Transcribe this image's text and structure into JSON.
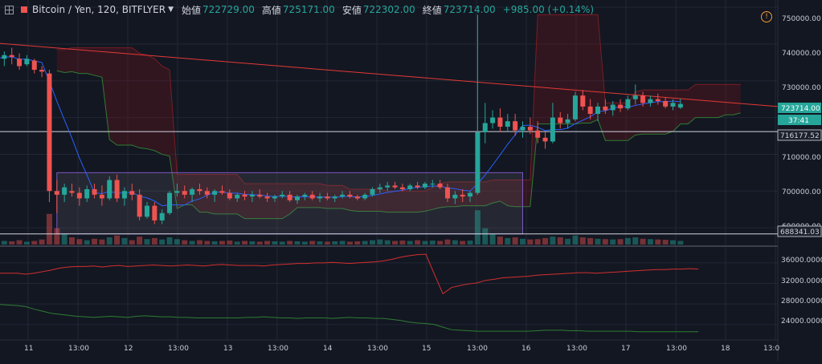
{
  "header": {
    "symbol": "Bitcoin / Yen, 120, BITFLYER",
    "open_label": "始値",
    "open_value": "722729.00",
    "high_label": "高値",
    "high_value": "725171.00",
    "low_label": "安値",
    "low_value": "722302.00",
    "close_label": "終値",
    "close_value": "723714.00",
    "change": "+985.00 (+0.14%)",
    "warning_symbol": "!"
  },
  "colors": {
    "up": "#26a69a",
    "down": "#ef5350",
    "background": "#131722",
    "grid": "#222734"
  },
  "icons": {
    "expand": "expand-icon",
    "dropdown": "chevron-down-icon",
    "warning": "warning-icon"
  },
  "price_scale": {
    "ticks": [
      "750000.00",
      "740000.00",
      "730000.00",
      "720000.00",
      "710000.00",
      "700000.00",
      "690000.00"
    ],
    "last_price_label": "723714.00",
    "countdown_label": "37:41",
    "upper_line_label": "716177.52",
    "lower_line_label": "688341.03"
  },
  "volume_scale": {
    "ticks": [
      "36000.0000",
      "32000.0000",
      "28000.0000",
      "24000.0000"
    ]
  },
  "time_axis": {
    "labels": [
      "11",
      "13:00",
      "12",
      "13:00",
      "13",
      "13:00",
      "14",
      "13:00",
      "15",
      "13:00",
      "16",
      "13:00",
      "17",
      "13:00",
      "18",
      "13:0"
    ]
  },
  "chart_data": {
    "type": "candlestick",
    "symbol": "Bitcoin / Yen",
    "interval": "120",
    "exchange": "BITFLYER",
    "y_range": [
      685000,
      752000
    ],
    "candles": [
      [
        737000,
        738500,
        735000,
        736000
      ],
      [
        736000,
        738000,
        734000,
        737000
      ],
      [
        737000,
        739000,
        734500,
        736500
      ],
      [
        736000,
        737500,
        733000,
        734000
      ],
      [
        734500,
        737000,
        734000,
        736000
      ],
      [
        735500,
        736000,
        732000,
        733000
      ],
      [
        733000,
        734000,
        731000,
        732500
      ],
      [
        732000,
        733000,
        697000,
        700000
      ],
      [
        700000,
        703000,
        694000,
        699000
      ],
      [
        699000,
        702000,
        697000,
        701000
      ],
      [
        700000,
        702000,
        698500,
        699500
      ],
      [
        699500,
        701000,
        696000,
        698000
      ],
      [
        698000,
        701500,
        697000,
        700500
      ],
      [
        700500,
        702000,
        698000,
        699000
      ],
      [
        699000,
        701500,
        696000,
        698000
      ],
      [
        698000,
        704000,
        697500,
        703000
      ],
      [
        703000,
        704500,
        697000,
        698000
      ],
      [
        698000,
        701000,
        696000,
        700000
      ],
      [
        700000,
        702000,
        697500,
        699000
      ],
      [
        699000,
        700500,
        692000,
        693000
      ],
      [
        693000,
        697000,
        692500,
        696000
      ],
      [
        696000,
        697000,
        691000,
        692000
      ],
      [
        692000,
        695000,
        691000,
        694000
      ],
      [
        694000,
        700000,
        693500,
        699500
      ],
      [
        699500,
        702000,
        698500,
        700000
      ],
      [
        700000,
        701500,
        698000,
        699000
      ],
      [
        699000,
        701000,
        697000,
        700500
      ],
      [
        700500,
        702000,
        699000,
        700000
      ],
      [
        700000,
        701000,
        698000,
        699000
      ],
      [
        699000,
        700500,
        697000,
        700000
      ],
      [
        700000,
        701500,
        699000,
        699500
      ],
      [
        699500,
        700500,
        697500,
        698000
      ],
      [
        698000,
        699500,
        697000,
        699000
      ],
      [
        699000,
        700000,
        697500,
        698500
      ],
      [
        698500,
        700000,
        697000,
        699000
      ],
      [
        699000,
        700500,
        698000,
        698500
      ],
      [
        698500,
        699500,
        697000,
        698000
      ],
      [
        698000,
        699000,
        697000,
        698500
      ],
      [
        698500,
        700000,
        698000,
        699000
      ],
      [
        699000,
        700000,
        697000,
        697500
      ],
      [
        697500,
        699000,
        696500,
        698500
      ],
      [
        698500,
        699500,
        697500,
        699000
      ],
      [
        699000,
        700000,
        697500,
        698000
      ],
      [
        698000,
        699500,
        697000,
        698500
      ],
      [
        698500,
        699500,
        697500,
        698000
      ],
      [
        698000,
        699000,
        697000,
        698500
      ],
      [
        698500,
        700000,
        698000,
        699000
      ],
      [
        699000,
        700000,
        698000,
        698500
      ],
      [
        698500,
        699000,
        697500,
        698000
      ],
      [
        698000,
        699500,
        697500,
        699000
      ],
      [
        699000,
        701000,
        698500,
        700500
      ],
      [
        700500,
        702000,
        699500,
        701000
      ],
      [
        701000,
        702500,
        700000,
        701500
      ],
      [
        701500,
        702500,
        700500,
        701000
      ],
      [
        701000,
        702000,
        700000,
        700500
      ],
      [
        700500,
        702000,
        700000,
        701500
      ],
      [
        701500,
        702500,
        700500,
        701000
      ],
      [
        701000,
        702500,
        700500,
        702000
      ],
      [
        702000,
        703000,
        701000,
        702000
      ],
      [
        702000,
        703000,
        700500,
        701000
      ],
      [
        701000,
        702000,
        697000,
        698000
      ],
      [
        698000,
        700000,
        696500,
        699000
      ],
      [
        699000,
        700500,
        697000,
        698500
      ],
      [
        698500,
        700000,
        697000,
        699500
      ],
      [
        699500,
        748000,
        699000,
        716000
      ],
      [
        716000,
        724000,
        713000,
        718500
      ],
      [
        718500,
        722000,
        717000,
        720000
      ],
      [
        720000,
        722500,
        716000,
        717500
      ],
      [
        717500,
        721000,
        716000,
        719000
      ],
      [
        719000,
        721000,
        715000,
        716500
      ],
      [
        716500,
        719000,
        714500,
        717500
      ],
      [
        717500,
        720000,
        715500,
        716500
      ],
      [
        716500,
        719000,
        713000,
        714500
      ],
      [
        714500,
        716000,
        711500,
        713500
      ],
      [
        713500,
        724000,
        713000,
        720000
      ],
      [
        720000,
        721500,
        717000,
        718500
      ],
      [
        718500,
        721000,
        717000,
        719500
      ],
      [
        719500,
        727000,
        719000,
        726000
      ],
      [
        726000,
        727500,
        722000,
        723000
      ],
      [
        723000,
        725000,
        719500,
        721000
      ],
      [
        721000,
        724000,
        719000,
        723000
      ],
      [
        723000,
        725000,
        721000,
        722000
      ],
      [
        722000,
        724500,
        720500,
        723500
      ],
      [
        723500,
        725000,
        721500,
        722500
      ],
      [
        722500,
        726000,
        722000,
        725000
      ],
      [
        725000,
        729000,
        723500,
        726000
      ],
      [
        726000,
        727000,
        723000,
        724000
      ],
      [
        724000,
        726000,
        723000,
        725000
      ],
      [
        725000,
        726500,
        723500,
        724500
      ],
      [
        724500,
        725500,
        722500,
        723000
      ],
      [
        723000,
        725000,
        722000,
        724000
      ],
      [
        722729,
        725171,
        722302,
        723714
      ]
    ],
    "volume_levels": [
      0.08,
      0.1,
      0.09,
      0.12,
      0.08,
      0.1,
      0.14,
      0.85,
      0.45,
      0.3,
      0.2,
      0.15,
      0.12,
      0.16,
      0.14,
      0.2,
      0.25,
      0.18,
      0.12,
      0.22,
      0.15,
      0.18,
      0.14,
      0.2,
      0.15,
      0.12,
      0.1,
      0.12,
      0.1,
      0.09,
      0.1,
      0.11,
      0.08,
      0.1,
      0.09,
      0.08,
      0.1,
      0.09,
      0.08,
      0.1,
      0.09,
      0.08,
      0.1,
      0.09,
      0.08,
      0.09,
      0.1,
      0.08,
      0.09,
      0.1,
      0.12,
      0.14,
      0.12,
      0.1,
      0.11,
      0.1,
      0.12,
      0.1,
      0.11,
      0.1,
      0.14,
      0.12,
      0.1,
      0.11,
      0.95,
      0.45,
      0.3,
      0.22,
      0.18,
      0.2,
      0.16,
      0.14,
      0.15,
      0.18,
      0.22,
      0.2,
      0.16,
      0.25,
      0.2,
      0.18,
      0.16,
      0.15,
      0.14,
      0.15,
      0.18,
      0.2,
      0.16,
      0.15,
      0.14,
      0.13,
      0.12,
      0.1
    ],
    "horizontal_lines": [
      716177.52,
      688341.03
    ],
    "range_box": {
      "from_index": 8,
      "to_index": 70,
      "top": 705000,
      "bottom": 688341.03
    },
    "indicator_y_range": [
      21000,
      38800
    ],
    "indicator_series": [
      {
        "color": "#d32f2f",
        "values": [
          34000,
          34000,
          34000,
          33800,
          34000,
          34300,
          34600,
          35000,
          35200,
          35300,
          35300,
          35400,
          35200,
          35400,
          35500,
          35300,
          35400,
          35500,
          35600,
          35500,
          35400,
          35500,
          35600,
          35500,
          35400,
          35600,
          35700,
          35600,
          35500,
          35500,
          35500,
          35400,
          35600,
          35700,
          35800,
          35900,
          35900,
          36000,
          36000,
          36100,
          36000,
          35900,
          36000,
          36100,
          36200,
          36400,
          36700,
          37100,
          37400,
          37600,
          37700,
          33800,
          30000,
          31200,
          31600,
          31900,
          32100,
          32600,
          32800,
          33100,
          33200,
          33300,
          33400,
          33600,
          33700,
          33800,
          33900,
          34000,
          34100,
          34100,
          34000,
          34100,
          34200,
          34300,
          34400,
          34500,
          34600,
          34700,
          34700,
          34800,
          34800,
          34900,
          34800
        ]
      },
      {
        "color": "#2e7d32",
        "values": [
          27900,
          27800,
          27700,
          27500,
          27000,
          26600,
          26200,
          26000,
          25800,
          25600,
          25500,
          25400,
          25500,
          25600,
          25500,
          25400,
          25600,
          25700,
          25600,
          25500,
          25500,
          25400,
          25400,
          25300,
          25300,
          25300,
          25300,
          25300,
          25300,
          25400,
          25400,
          25500,
          25400,
          25300,
          25300,
          25200,
          25300,
          25300,
          25300,
          25200,
          25300,
          25400,
          25300,
          25300,
          25200,
          25200,
          25000,
          24800,
          24500,
          24300,
          24200,
          24000,
          23500,
          23000,
          22900,
          22800,
          22700,
          22700,
          22700,
          22700,
          22700,
          22700,
          22700,
          22800,
          22900,
          22900,
          22900,
          22800,
          22800,
          22700,
          22700,
          22700,
          22700,
          22700,
          22700,
          22600,
          22600,
          22600,
          22600,
          22600,
          22600,
          22600,
          22600
        ]
      }
    ]
  }
}
